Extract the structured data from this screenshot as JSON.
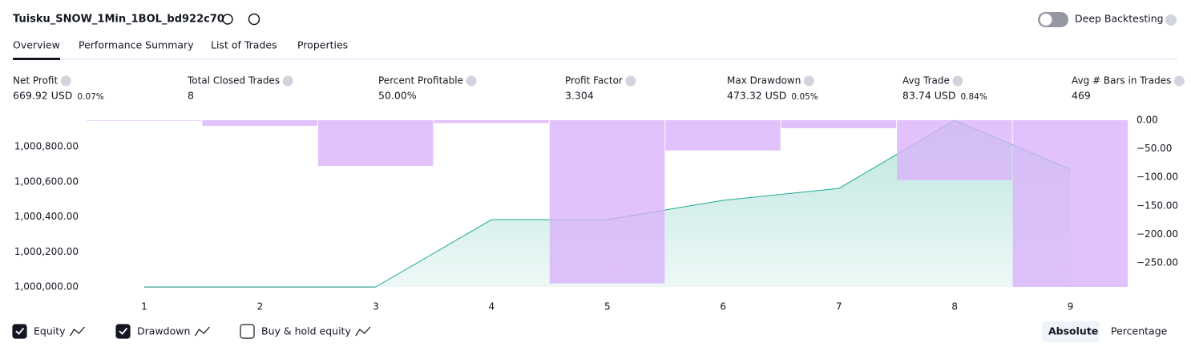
{
  "header": {
    "title": "Tuisku_SNOW_1Min_1BOL_bd922c70",
    "deep_backtesting": "Deep Backtesting"
  },
  "tabs": [
    "Overview",
    "Performance Summary",
    "List of Trades",
    "Properties"
  ],
  "metrics": [
    {
      "label": "Net Profit",
      "value": "669.92 USD",
      "percent": "0.07%",
      "color": "#089981"
    },
    {
      "label": "Total Closed Trades",
      "value": "8",
      "color": "#131722"
    },
    {
      "label": "Percent Profitable",
      "value": "50.00%",
      "color": "#089981"
    },
    {
      "label": "Profit Factor",
      "value": "3.304",
      "color": "#089981"
    },
    {
      "label": "Max Drawdown",
      "value": "473.32 USD",
      "percent": "0.05%",
      "color": "#f23645"
    },
    {
      "label": "Avg Trade",
      "value": "83.74 USD",
      "percent": "0.84%",
      "color": "#089981"
    },
    {
      "label": "Avg # Bars in Trades",
      "value": "469",
      "color": "#131722"
    }
  ],
  "chart_data": {
    "type": "line",
    "categories": [
      "1",
      "2",
      "3",
      "4",
      "5",
      "6",
      "7",
      "8",
      "9"
    ],
    "series": [
      {
        "name": "Equity",
        "type": "line",
        "color": "#22ab94",
        "values": [
          1000000,
          1000000,
          1000000,
          1000384,
          1000384,
          1000494,
          1000562,
          1000951,
          1000670
        ]
      },
      {
        "name": "Drawdown",
        "type": "bar",
        "axis": "y2",
        "color": "#d9b3fb",
        "values": [
          -1,
          -10,
          -80,
          -5,
          -286,
          -53,
          -14,
          -105,
          -292
        ]
      }
    ],
    "ylim": [
      1000000,
      1000951
    ],
    "yticks": [
      {
        "value": 1000000,
        "label": "1,000,000.00"
      },
      {
        "value": 1000200,
        "label": "1,000,200.00"
      },
      {
        "value": 1000400,
        "label": "1,000,400.00"
      },
      {
        "value": 1000600,
        "label": "1,000,600.00"
      },
      {
        "value": 1000800,
        "label": "1,000,800.00"
      }
    ],
    "y2lim": [
      -292,
      0
    ],
    "y2ticks": [
      {
        "value": 0,
        "label": "0.00"
      },
      {
        "value": -50,
        "label": "−50.00"
      },
      {
        "value": -100,
        "label": "−100.00"
      },
      {
        "value": -150,
        "label": "−150.00"
      },
      {
        "value": -200,
        "label": "−200.00"
      },
      {
        "value": -250,
        "label": "−250.00"
      }
    ],
    "grid": false,
    "extra_legend": "Buy & hold equity"
  },
  "scale_buttons": [
    "Absolute",
    "Percentage"
  ]
}
